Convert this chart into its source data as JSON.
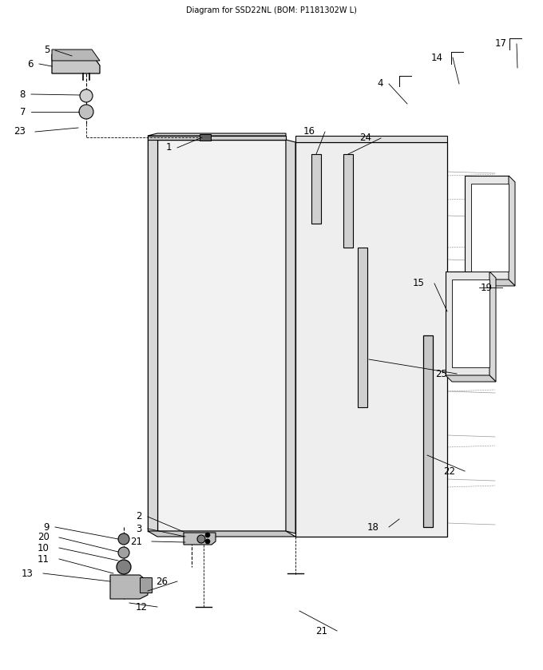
{
  "title_top": "Diagram for SSD22NL (BOM: P1181302W L)",
  "bg_color": "#ffffff",
  "fig_width": 6.8,
  "fig_height": 8.39,
  "dpi": 100
}
